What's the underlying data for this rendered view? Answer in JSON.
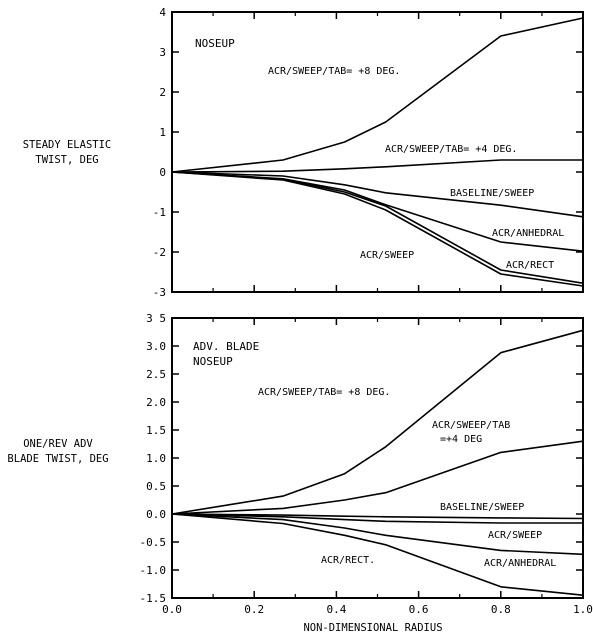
{
  "xlabel": "NON-DIMENSIONAL RADIUS",
  "chart_data": [
    {
      "type": "line",
      "ylabel_lines": [
        "STEADY ELASTIC",
        "TWIST, DEG"
      ],
      "corner_label_lines": [
        "NOSEUP"
      ],
      "xlim": [
        0.0,
        1.0
      ],
      "ylim": [
        -3,
        4
      ],
      "x_ticks": [
        0.0,
        0.2,
        0.4,
        0.6,
        0.8,
        1.0
      ],
      "y_ticks": [
        -3,
        -2,
        -1,
        0,
        1,
        2,
        3,
        4
      ],
      "y_tick_labels": [
        "-3",
        "-2",
        "-1",
        "0",
        "1",
        "2",
        "3",
        "4"
      ],
      "grid": false,
      "series": [
        {
          "name": "ACR/SWEEP/TAB= +8 DEG.",
          "x": [
            0.0,
            0.27,
            0.42,
            0.52,
            0.8,
            1.0
          ],
          "values": [
            0.0,
            0.3,
            0.75,
            1.25,
            3.4,
            3.85
          ]
        },
        {
          "name": "ACR/SWEEP/TAB= +4 DEG.",
          "x": [
            0.0,
            0.27,
            0.42,
            0.52,
            0.8,
            1.0
          ],
          "values": [
            0.0,
            0.02,
            0.08,
            0.13,
            0.3,
            0.3
          ]
        },
        {
          "name": "BASELINE/SWEEP",
          "x": [
            0.0,
            0.27,
            0.42,
            0.52,
            0.8,
            1.0
          ],
          "values": [
            0.0,
            -0.1,
            -0.32,
            -0.52,
            -0.83,
            -1.12
          ]
        },
        {
          "name": "ACR/ANHEDRAL",
          "x": [
            0.0,
            0.27,
            0.42,
            0.52,
            0.8,
            1.0
          ],
          "values": [
            0.0,
            -0.17,
            -0.45,
            -0.82,
            -1.75,
            -1.98
          ]
        },
        {
          "name": "ACR/SWEEP",
          "x": [
            0.0,
            0.27,
            0.42,
            0.52,
            0.8,
            1.0
          ],
          "values": [
            0.0,
            -0.2,
            -0.55,
            -0.95,
            -2.55,
            -2.85
          ]
        },
        {
          "name": "ACR/RECT",
          "x": [
            0.0,
            0.27,
            0.42,
            0.52,
            0.8,
            1.0
          ],
          "values": [
            0.0,
            -0.18,
            -0.5,
            -0.85,
            -2.45,
            -2.78
          ]
        }
      ],
      "annotations": [
        "ACR/SWEEP/TAB= +8 DEG.",
        "ACR/SWEEP/TAB= +4 DEG.",
        "BASELINE/SWEEP",
        "ACR/ANHEDRAL",
        "ACR/SWEEP",
        "ACR/RECT"
      ]
    },
    {
      "type": "line",
      "ylabel_lines": [
        "ONE/REV ADV",
        "BLADE TWIST, DEG"
      ],
      "corner_label_lines": [
        "ADV. BLADE",
        "NOSEUP"
      ],
      "xlim": [
        0.0,
        1.0
      ],
      "ylim": [
        -1.5,
        3.5
      ],
      "x_ticks": [
        0.0,
        0.2,
        0.4,
        0.6,
        0.8,
        1.0
      ],
      "x_tick_labels": [
        "0.0",
        "0.2",
        "0.4",
        "0.6",
        "0.8",
        "1.0"
      ],
      "y_ticks": [
        -1.5,
        -1.0,
        -0.5,
        0.0,
        0.5,
        1.0,
        1.5,
        2.0,
        2.5,
        3.0,
        3.5
      ],
      "y_tick_labels": [
        "-1.5",
        "-1.0",
        "-0.5",
        "0.0",
        "0.5",
        "1.0",
        "1.5",
        "2.0",
        "2.5",
        "3.0",
        "3 5"
      ],
      "grid": false,
      "series": [
        {
          "name": "ACR/SWEEP/TAB= +8 DEG.",
          "x": [
            0.0,
            0.27,
            0.42,
            0.52,
            0.8,
            1.0
          ],
          "values": [
            0.0,
            0.32,
            0.72,
            1.2,
            2.88,
            3.28
          ]
        },
        {
          "name": "ACR/SWEEP/TAB =+4 DEG",
          "x": [
            0.0,
            0.27,
            0.42,
            0.52,
            0.8,
            1.0
          ],
          "values": [
            0.0,
            0.1,
            0.25,
            0.38,
            1.1,
            1.3
          ]
        },
        {
          "name": "BASELINE/SWEEP",
          "x": [
            0.0,
            0.27,
            0.42,
            0.52,
            0.8,
            1.0
          ],
          "values": [
            0.0,
            -0.02,
            -0.04,
            -0.05,
            -0.07,
            -0.08
          ]
        },
        {
          "name": "ACR/SWEEP",
          "x": [
            0.0,
            0.27,
            0.42,
            0.52,
            0.8,
            1.0
          ],
          "values": [
            0.0,
            -0.05,
            -0.1,
            -0.13,
            -0.16,
            -0.16
          ]
        },
        {
          "name": "ACR/ANHEDRAL",
          "x": [
            0.0,
            0.27,
            0.42,
            0.52,
            0.8,
            1.0
          ],
          "values": [
            0.0,
            -0.1,
            -0.25,
            -0.38,
            -0.65,
            -0.72
          ]
        },
        {
          "name": "ACR/RECT.",
          "x": [
            0.0,
            0.27,
            0.42,
            0.52,
            0.8,
            1.0
          ],
          "values": [
            0.0,
            -0.17,
            -0.38,
            -0.55,
            -1.3,
            -1.45
          ]
        }
      ],
      "annotations": [
        "ACR/SWEEP/TAB= +8 DEG.",
        "ACR/SWEEP/TAB",
        "=+4 DEG",
        "BASELINE/SWEEP",
        "ACR/SWEEP",
        "ACR/ANHEDRAL",
        "ACR/RECT."
      ]
    }
  ]
}
